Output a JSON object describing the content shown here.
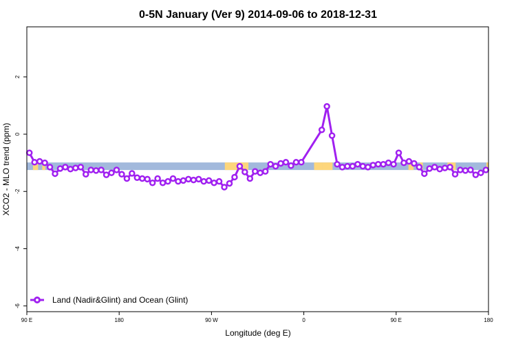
{
  "chart_data": {
    "type": "line",
    "title": "0-5N January (Ver 9)   2014-09-06 to 2018-12-31",
    "xlabel": "Longitude (deg E)",
    "ylabel": "XCO2 - MLO trend (ppm)",
    "x_ticks": [
      {
        "value": 90,
        "label": "90 E"
      },
      {
        "value": 180,
        "label": "180"
      },
      {
        "value": 270,
        "label": "90 W"
      },
      {
        "value": 360,
        "label": "0"
      },
      {
        "value": 450,
        "label": "90 E"
      },
      {
        "value": 540,
        "label": "180"
      }
    ],
    "y_ticks": [
      {
        "value": -6,
        "label": "-6"
      },
      {
        "value": -4,
        "label": "-4"
      },
      {
        "value": -2,
        "label": "-2"
      },
      {
        "value": 0,
        "label": "0"
      },
      {
        "value": 2,
        "label": "2"
      }
    ],
    "xlim": [
      90,
      540
    ],
    "ylim": [
      -6.2,
      3.75
    ],
    "grid": false,
    "legend_position": "bottom-left",
    "series": [
      {
        "name": "Land (Nadir&Glint) and Ocean (Glint)",
        "color": "#a020f0",
        "marker": "open-circle",
        "x": [
          92.5,
          97.5,
          102.5,
          107.5,
          112.5,
          117.5,
          122.5,
          127.5,
          132.5,
          137.5,
          142.5,
          147.5,
          152.5,
          157.5,
          162.5,
          167.5,
          172.5,
          177.5,
          182.5,
          187.5,
          192.5,
          197.5,
          202.5,
          207.5,
          212.5,
          217.5,
          222.5,
          227.5,
          232.5,
          237.5,
          242.5,
          247.5,
          252.5,
          257.5,
          262.5,
          267.5,
          272.5,
          277.5,
          282.5,
          287.5,
          292.5,
          297.5,
          302.5,
          307.5,
          312.5,
          317.5,
          322.5,
          327.5,
          332.5,
          337.5,
          342.5,
          347.5,
          352.5,
          357.5,
          377.5,
          382.5,
          387.5,
          392.5,
          397.5,
          402.5,
          407.5,
          412.5,
          417.5,
          422.5,
          427.5,
          432.5,
          437.5,
          442.5,
          447.5,
          452.5,
          457.5,
          462.5,
          467.5,
          472.5,
          477.5,
          482.5,
          487.5,
          492.5,
          497.5,
          502.5,
          507.5,
          512.5,
          517.5,
          522.5,
          527.5,
          532.5,
          537.5
        ],
        "y": [
          -0.65,
          -0.98,
          -0.95,
          -1.0,
          -1.15,
          -1.38,
          -1.2,
          -1.15,
          -1.22,
          -1.18,
          -1.15,
          -1.4,
          -1.25,
          -1.27,
          -1.25,
          -1.42,
          -1.35,
          -1.25,
          -1.4,
          -1.55,
          -1.37,
          -1.52,
          -1.55,
          -1.57,
          -1.7,
          -1.55,
          -1.7,
          -1.65,
          -1.55,
          -1.65,
          -1.62,
          -1.57,
          -1.6,
          -1.57,
          -1.65,
          -1.62,
          -1.7,
          -1.65,
          -1.85,
          -1.72,
          -1.5,
          -1.12,
          -1.32,
          -1.55,
          -1.3,
          -1.35,
          -1.3,
          -1.05,
          -1.12,
          -1.02,
          -0.98,
          -1.1,
          -0.98,
          -0.98,
          0.15,
          0.97,
          -0.05,
          -1.05,
          -1.15,
          -1.12,
          -1.12,
          -1.05,
          -1.12,
          -1.15,
          -1.08,
          -1.05,
          -1.05,
          -1.0,
          -1.05,
          -0.65,
          -1.0,
          -0.95,
          -1.02,
          -1.15,
          -1.38,
          -1.2,
          -1.15,
          -1.22,
          -1.18,
          -1.15,
          -1.4,
          -1.25,
          -1.27,
          -1.25,
          -1.42,
          -1.35,
          -1.25
        ]
      }
    ],
    "surface_band": {
      "y": -1.12,
      "ocean_color": "#a2b9dc",
      "land_color": "#fdd67c",
      "land_ranges": [
        [
          96,
          101
        ],
        [
          105,
          108
        ],
        [
          283,
          306
        ],
        [
          370,
          378
        ],
        [
          378,
          388
        ],
        [
          462,
          467
        ],
        [
          473,
          476
        ],
        [
          500,
          508
        ],
        [
          538,
          540
        ]
      ]
    }
  }
}
